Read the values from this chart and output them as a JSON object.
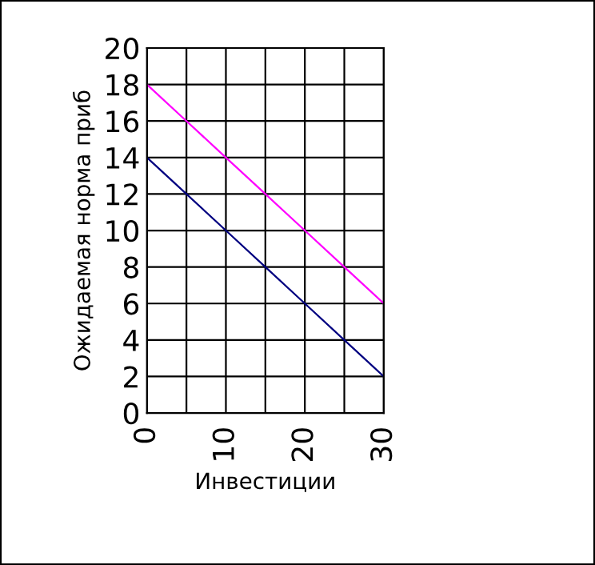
{
  "chart_data": {
    "type": "line",
    "xlabel": "Инвестиции",
    "ylabel": "Ожидаемая норма приб",
    "x": [
      0,
      5,
      10,
      15,
      20,
      25,
      30
    ],
    "series": [
      {
        "color": "#ff00ff",
        "values": [
          18,
          16,
          14,
          12,
          10,
          8,
          6
        ]
      },
      {
        "color": "#000080",
        "values": [
          14,
          12,
          10,
          8,
          6,
          4,
          2
        ]
      }
    ],
    "xlim": [
      0,
      30
    ],
    "ylim": [
      0,
      20
    ],
    "xticks": [
      0,
      {
        "value": 5,
        "label": null
      },
      10,
      {
        "value": 15,
        "label": null
      },
      20,
      {
        "value": 25,
        "label": null
      },
      30
    ],
    "yticks": [
      0,
      2,
      4,
      6,
      8,
      10,
      12,
      14,
      16,
      18,
      20
    ],
    "grid": true,
    "marker": "none",
    "line_style": "solid"
  }
}
